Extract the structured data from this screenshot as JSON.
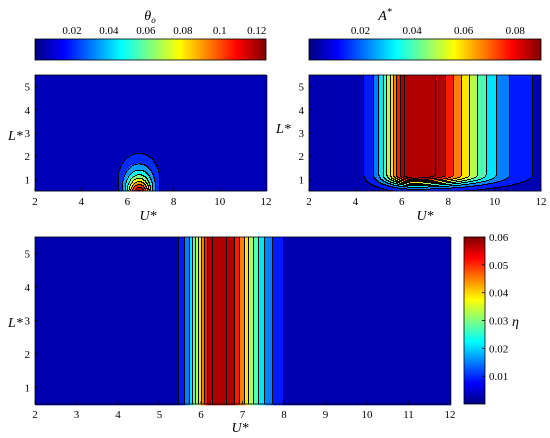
{
  "chart_data": [
    {
      "id": "theta",
      "type": "contour",
      "colorbar_title": "θ",
      "colorbar_title_sub": "o",
      "colorbar_ticks": [
        "0.02",
        "0.04",
        "0.06",
        "0.08",
        "0.1",
        "0.12"
      ],
      "colorbar_tick_values": [
        0.02,
        0.04,
        0.06,
        0.08,
        0.1,
        0.12
      ],
      "colorbar_range": [
        0.0,
        0.125
      ],
      "xlabel": "U*",
      "ylabel": "L*",
      "xlim": [
        2,
        12
      ],
      "ylim": [
        0.5,
        5.5
      ],
      "x_ticks": [
        "2",
        "4",
        "6",
        "8",
        "10",
        "12"
      ],
      "x_tick_values": [
        2,
        4,
        6,
        8,
        10,
        12
      ],
      "y_ticks": [
        "1",
        "2",
        "3",
        "4",
        "5"
      ],
      "y_tick_values": [
        1,
        2,
        3,
        4,
        5
      ],
      "peak": {
        "x": 6.5,
        "y": 0.6,
        "value": 0.12
      },
      "background_value": 0.003
    },
    {
      "id": "amplitude",
      "type": "contour",
      "colorbar_title": "A",
      "colorbar_title_sup": "*",
      "colorbar_ticks": [
        "0.02",
        "0.04",
        "0.06",
        "0.08"
      ],
      "colorbar_tick_values": [
        0.02,
        0.04,
        0.06,
        0.08
      ],
      "colorbar_range": [
        0.0,
        0.09
      ],
      "xlabel": "U*",
      "ylabel": "L*",
      "xlim": [
        2,
        12
      ],
      "ylim": [
        0.5,
        5.5
      ],
      "x_ticks": [
        "2",
        "4",
        "6",
        "8",
        "10",
        "12"
      ],
      "x_tick_values": [
        2,
        4,
        6,
        8,
        10,
        12
      ],
      "y_ticks": [
        "1",
        "2",
        "3",
        "4",
        "5"
      ],
      "y_tick_values": [
        1,
        2,
        3,
        4,
        5
      ],
      "peak": {
        "x": 6.5,
        "y": 4.5,
        "value": 0.088
      },
      "background_value": 0.004
    },
    {
      "id": "efficiency",
      "type": "contour",
      "colorbar_title": "η",
      "colorbar_ticks": [
        "0.01",
        "0.02",
        "0.03",
        "0.04",
        "0.05",
        "0.06"
      ],
      "colorbar_tick_values": [
        0.01,
        0.02,
        0.03,
        0.04,
        0.05,
        0.06
      ],
      "colorbar_range": [
        0.0,
        0.06
      ],
      "xlabel": "U*",
      "ylabel": "L*",
      "xlim": [
        2,
        12
      ],
      "ylim": [
        0.5,
        5.5
      ],
      "x_ticks": [
        "2",
        "3",
        "4",
        "5",
        "6",
        "7",
        "8",
        "9",
        "10",
        "11",
        "12"
      ],
      "x_tick_values": [
        2,
        3,
        4,
        5,
        6,
        7,
        8,
        9,
        10,
        11,
        12
      ],
      "y_ticks": [
        "1",
        "2",
        "3",
        "4",
        "5"
      ],
      "y_tick_values": [
        1,
        2,
        3,
        4,
        5
      ],
      "peak": {
        "x": 6.4,
        "y": 3.0,
        "value": 0.06
      },
      "background_value": 0.001
    }
  ]
}
